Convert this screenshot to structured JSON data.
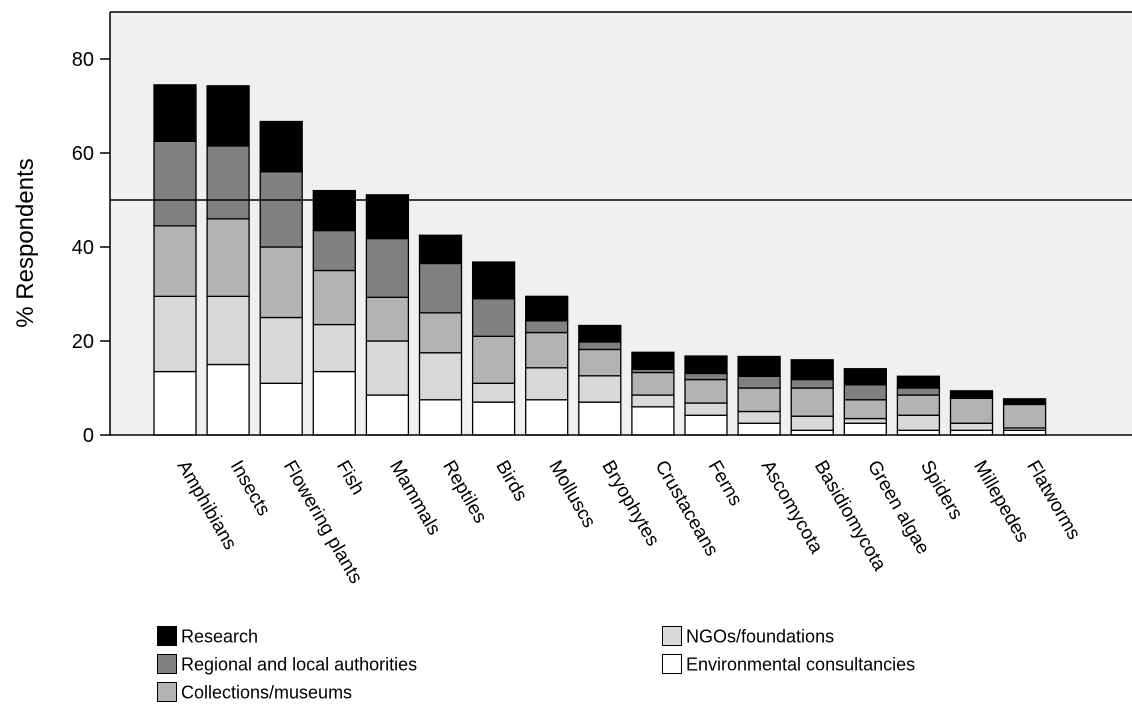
{
  "chart_data": {
    "type": "bar",
    "stacked": true,
    "ylabel": "% Respondents",
    "ylim": [
      0,
      90
    ],
    "yticks": [
      0,
      20,
      40,
      60,
      80
    ],
    "reference_line": 50,
    "grid": false,
    "legend_position": "bottom",
    "categories": [
      "Amphibians",
      "Insects",
      "Flowering plants",
      "Fish",
      "Mammals",
      "Reptiles",
      "Birds",
      "Molluscs",
      "Bryophytes",
      "Crustaceans",
      "Ferns",
      "Ascomycota",
      "Basidiomycota",
      "Green algae",
      "Spiders",
      "Millepedes",
      "Flatworms"
    ],
    "series": [
      {
        "name": "Environmental consultancies",
        "color": "#ffffff",
        "values": [
          13.5,
          15,
          11,
          13.5,
          8.5,
          7.5,
          7,
          7.5,
          7,
          6,
          4.2,
          2.5,
          1,
          2.5,
          1,
          1,
          1
        ]
      },
      {
        "name": "NGOs/foundations",
        "color": "#d9d9d9",
        "values": [
          16,
          14.5,
          14,
          10,
          11.5,
          10,
          4,
          6.8,
          5.6,
          2.5,
          2.6,
          2.5,
          3,
          1,
          3.2,
          1.5,
          0.5
        ]
      },
      {
        "name": "Collections/museums",
        "color": "#b3b3b3",
        "values": [
          15,
          16.5,
          15,
          11.5,
          9.3,
          8.5,
          10,
          7.5,
          5.6,
          4.8,
          5,
          5,
          6,
          4,
          4.3,
          5.3,
          5
        ]
      },
      {
        "name": "Regional and local authorities",
        "color": "#808080",
        "values": [
          18,
          15.5,
          16,
          8.5,
          12.5,
          10.5,
          8,
          2.5,
          1.6,
          0.7,
          1.3,
          2.5,
          1.8,
          3.2,
          1.5,
          0.2,
          0.2
        ]
      },
      {
        "name": "Research",
        "color": "#000000",
        "values": [
          12,
          12.8,
          10.7,
          8.5,
          9.3,
          6,
          7.8,
          5.2,
          3.5,
          3.6,
          3.7,
          4.2,
          4.2,
          3.4,
          2.5,
          1.4,
          1
        ]
      }
    ]
  },
  "legend": [
    {
      "label": "Research",
      "color": "#000000"
    },
    {
      "label": "Regional and local authorities",
      "color": "#808080"
    },
    {
      "label": "Collections/museums",
      "color": "#b3b3b3"
    },
    {
      "label": "NGOs/foundations",
      "color": "#d9d9d9"
    },
    {
      "label": "Environmental consultancies",
      "color": "#ffffff"
    }
  ]
}
